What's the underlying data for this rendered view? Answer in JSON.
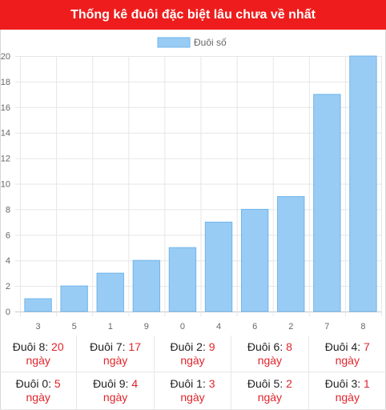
{
  "header": {
    "title": "Thống kê đuôi đặc biệt lâu chưa về nhất"
  },
  "colors": {
    "header": "#ee1c1c",
    "bar": "#99ccf4",
    "barBorder": "#6fb5ec",
    "red": "#e0242b"
  },
  "chart_data": {
    "type": "bar",
    "categories": [
      "3",
      "5",
      "1",
      "9",
      "0",
      "4",
      "6",
      "2",
      "7",
      "8"
    ],
    "series": [
      {
        "name": "Đuôi số",
        "values": [
          1,
          2,
          3,
          4,
          5,
          7,
          8,
          9,
          17,
          20
        ]
      }
    ],
    "yticks": [
      "0",
      "2",
      "4",
      "6",
      "8",
      "10",
      "12",
      "14",
      "16",
      "18",
      "20"
    ],
    "ylim": [
      0,
      20
    ],
    "grid": true,
    "legend": "top-center"
  },
  "stats": [
    {
      "label": "Đuôi 8:",
      "value": "20",
      "unit": "ngày"
    },
    {
      "label": "Đuôi 7:",
      "value": "17",
      "unit": "ngày"
    },
    {
      "label": "Đuôi 2:",
      "value": "9",
      "unit": "ngày"
    },
    {
      "label": "Đuôi 6:",
      "value": "8",
      "unit": "ngày"
    },
    {
      "label": "Đuôi 4:",
      "value": "7",
      "unit": "ngày"
    },
    {
      "label": "Đuôi 0:",
      "value": "5",
      "unit": "ngày"
    },
    {
      "label": "Đuôi 9:",
      "value": "4",
      "unit": "ngày"
    },
    {
      "label": "Đuôi 1:",
      "value": "3",
      "unit": "ngày"
    },
    {
      "label": "Đuôi 5:",
      "value": "2",
      "unit": "ngày"
    },
    {
      "label": "Đuôi 3:",
      "value": "1",
      "unit": "ngày"
    }
  ]
}
